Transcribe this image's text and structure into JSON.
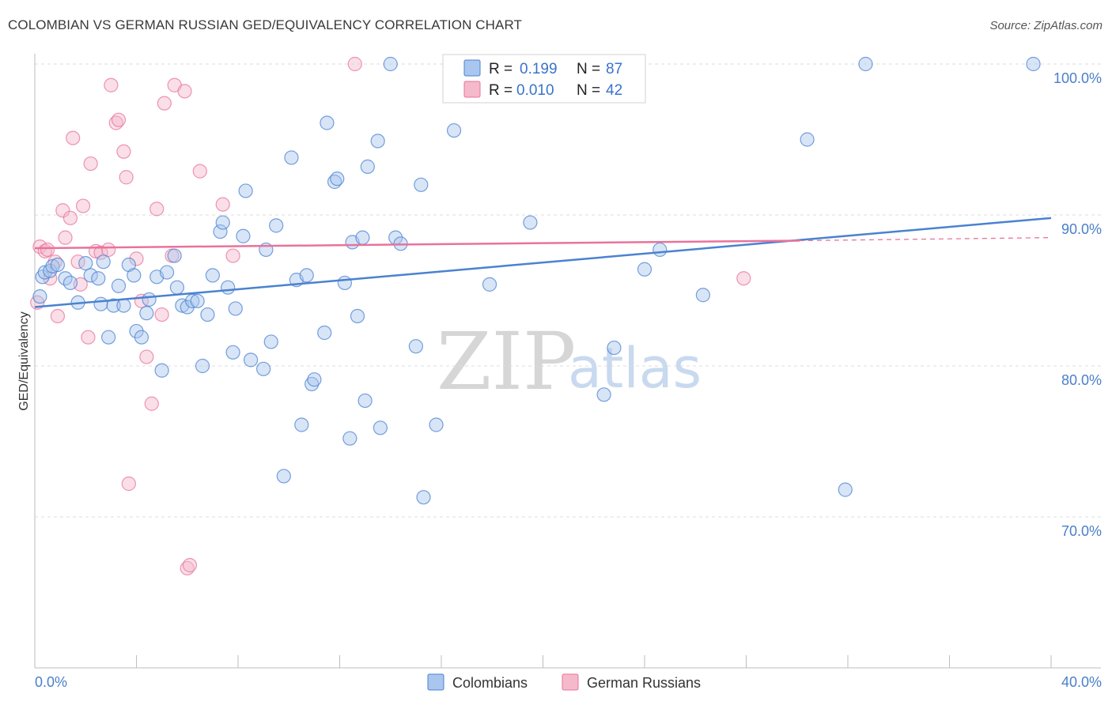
{
  "header": {
    "title": "COLOMBIAN VS GERMAN RUSSIAN GED/EQUIVALENCY CORRELATION CHART",
    "source": "Source: ZipAtlas.com"
  },
  "legend": {
    "r_label": "R =",
    "n_label": "N =",
    "series1": {
      "r": "0.199",
      "n": "87"
    },
    "series2": {
      "r": "0.010",
      "n": "42"
    }
  },
  "watermark": {
    "zip": "ZIP",
    "atlas": "atlas"
  },
  "colors": {
    "blue": "#4a82d0",
    "blue_fill": "#a9c6ee",
    "pink": "#e8739b",
    "pink_fill": "#f5b9cc",
    "tick_text": "#4a7fc9"
  },
  "chart_data": {
    "type": "scatter",
    "title": "COLOMBIAN VS GERMAN RUSSIAN GED/EQUIVALENCY CORRELATION CHART",
    "xlabel": "",
    "ylabel": "GED/Equivalency",
    "xlim": [
      0,
      40
    ],
    "ylim": [
      60,
      101.5
    ],
    "x_tick_labels": [
      "0.0%",
      "40.0%"
    ],
    "y_ticks": [
      {
        "value": 70,
        "label": "70.0%"
      },
      {
        "value": 80,
        "label": "80.0%"
      },
      {
        "value": 90,
        "label": "90.0%"
      },
      {
        "value": 100,
        "label": "100.0%"
      }
    ],
    "series": [
      {
        "name": "Colombians",
        "color": "#4a82d0",
        "trend": {
          "x": [
            0,
            40
          ],
          "y": [
            83.9,
            89.8
          ]
        },
        "points": [
          [
            0.3,
            85.9
          ],
          [
            0.4,
            86.2
          ],
          [
            0.6,
            86.3
          ],
          [
            0.7,
            86.6
          ],
          [
            0.9,
            86.7
          ],
          [
            1.2,
            85.8
          ],
          [
            1.4,
            85.5
          ],
          [
            1.7,
            84.2
          ],
          [
            2.0,
            86.8
          ],
          [
            2.2,
            86.0
          ],
          [
            2.5,
            85.8
          ],
          [
            2.6,
            84.1
          ],
          [
            2.7,
            86.9
          ],
          [
            2.9,
            81.9
          ],
          [
            3.1,
            84.0
          ],
          [
            3.3,
            85.3
          ],
          [
            3.5,
            84.0
          ],
          [
            3.7,
            86.7
          ],
          [
            3.9,
            86.0
          ],
          [
            4.0,
            82.3
          ],
          [
            4.2,
            81.9
          ],
          [
            4.4,
            83.5
          ],
          [
            4.5,
            84.4
          ],
          [
            4.8,
            85.9
          ],
          [
            5.0,
            79.7
          ],
          [
            5.2,
            86.2
          ],
          [
            5.5,
            87.3
          ],
          [
            5.6,
            85.2
          ],
          [
            5.8,
            84.0
          ],
          [
            6.0,
            83.9
          ],
          [
            6.2,
            84.3
          ],
          [
            6.4,
            84.3
          ],
          [
            6.6,
            80.0
          ],
          [
            6.8,
            83.4
          ],
          [
            7.0,
            86.0
          ],
          [
            7.3,
            88.9
          ],
          [
            7.4,
            89.5
          ],
          [
            7.6,
            85.2
          ],
          [
            7.8,
            80.9
          ],
          [
            7.9,
            83.8
          ],
          [
            8.2,
            88.6
          ],
          [
            8.3,
            91.6
          ],
          [
            8.5,
            80.4
          ],
          [
            9.0,
            79.8
          ],
          [
            9.1,
            87.7
          ],
          [
            9.3,
            81.6
          ],
          [
            9.5,
            89.3
          ],
          [
            9.8,
            72.7
          ],
          [
            10.1,
            93.8
          ],
          [
            10.3,
            85.7
          ],
          [
            10.5,
            76.1
          ],
          [
            10.7,
            86.0
          ],
          [
            10.9,
            78.8
          ],
          [
            11.0,
            79.1
          ],
          [
            11.4,
            82.2
          ],
          [
            11.5,
            96.1
          ],
          [
            11.8,
            92.2
          ],
          [
            11.9,
            92.4
          ],
          [
            12.2,
            85.5
          ],
          [
            12.4,
            75.2
          ],
          [
            12.5,
            88.2
          ],
          [
            12.7,
            83.3
          ],
          [
            12.9,
            88.5
          ],
          [
            13.1,
            93.2
          ],
          [
            13.0,
            77.7
          ],
          [
            13.5,
            94.9
          ],
          [
            13.6,
            75.9
          ],
          [
            14.0,
            100.0
          ],
          [
            14.2,
            88.5
          ],
          [
            14.4,
            88.1
          ],
          [
            15.0,
            81.3
          ],
          [
            15.2,
            92.0
          ],
          [
            15.3,
            71.3
          ],
          [
            15.8,
            76.1
          ],
          [
            16.5,
            95.6
          ],
          [
            17.9,
            85.4
          ],
          [
            19.5,
            89.5
          ],
          [
            22.4,
            78.1
          ],
          [
            22.8,
            81.2
          ],
          [
            24.0,
            86.4
          ],
          [
            24.6,
            87.7
          ],
          [
            26.3,
            84.7
          ],
          [
            30.4,
            95.0
          ],
          [
            31.9,
            71.8
          ],
          [
            32.7,
            100.0
          ],
          [
            39.3,
            100.0
          ],
          [
            0.2,
            84.6
          ]
        ]
      },
      {
        "name": "German Russians",
        "color": "#e8739b",
        "trend": {
          "x": [
            0,
            30.1
          ],
          "y": [
            87.8,
            88.3
          ]
        },
        "trend_dashed": {
          "x": [
            30.1,
            40
          ],
          "y": [
            88.3,
            88.5
          ]
        },
        "points": [
          [
            0.1,
            84.2
          ],
          [
            0.2,
            87.9
          ],
          [
            0.4,
            87.6
          ],
          [
            0.5,
            87.7
          ],
          [
            0.6,
            85.8
          ],
          [
            0.8,
            86.9
          ],
          [
            0.9,
            83.3
          ],
          [
            1.1,
            90.3
          ],
          [
            1.2,
            88.5
          ],
          [
            1.4,
            89.8
          ],
          [
            1.5,
            95.1
          ],
          [
            1.7,
            86.9
          ],
          [
            1.8,
            85.4
          ],
          [
            1.9,
            90.6
          ],
          [
            2.1,
            81.9
          ],
          [
            2.2,
            93.4
          ],
          [
            2.4,
            87.6
          ],
          [
            2.6,
            87.5
          ],
          [
            2.9,
            87.7
          ],
          [
            3.0,
            98.6
          ],
          [
            3.2,
            96.1
          ],
          [
            3.3,
            96.3
          ],
          [
            3.5,
            94.2
          ],
          [
            3.6,
            92.5
          ],
          [
            3.7,
            72.2
          ],
          [
            4.0,
            87.1
          ],
          [
            4.2,
            84.3
          ],
          [
            4.4,
            80.6
          ],
          [
            4.6,
            77.5
          ],
          [
            4.8,
            90.4
          ],
          [
            5.0,
            83.4
          ],
          [
            5.1,
            97.4
          ],
          [
            5.4,
            87.3
          ],
          [
            5.5,
            98.6
          ],
          [
            5.9,
            98.2
          ],
          [
            6.0,
            66.6
          ],
          [
            6.1,
            66.8
          ],
          [
            6.5,
            92.9
          ],
          [
            7.4,
            90.7
          ],
          [
            7.8,
            87.3
          ],
          [
            12.6,
            100.0
          ],
          [
            27.9,
            85.8
          ]
        ]
      }
    ]
  },
  "bottom_legend": {
    "items": [
      {
        "label": "Colombians"
      },
      {
        "label": "German Russians"
      }
    ]
  }
}
